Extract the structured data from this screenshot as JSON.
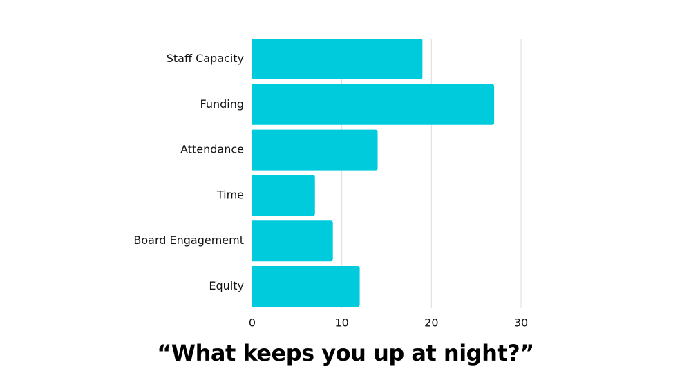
{
  "chart_data": {
    "type": "bar",
    "orientation": "horizontal",
    "title": "“What keeps you up at night?”",
    "xlabel": "",
    "ylabel": "",
    "categories": [
      "Staff Capacity",
      "Funding",
      "Attendance",
      "Time",
      "Board Engagememt",
      "Equity"
    ],
    "values": [
      19,
      27,
      14,
      7,
      9,
      12
    ],
    "xlim": [
      0,
      30
    ],
    "xticks": [
      0,
      10,
      20,
      30
    ],
    "grid": true,
    "bar_color": "#00CBDD",
    "grid_color": "#DDDDDD"
  }
}
